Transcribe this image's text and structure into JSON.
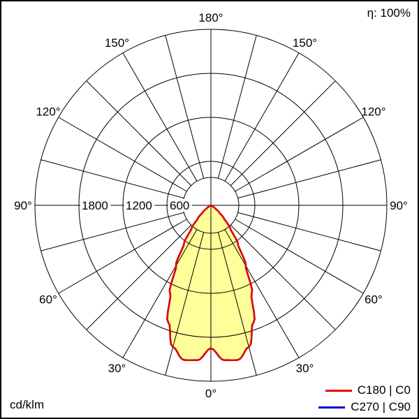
{
  "frame": {
    "background": "#ffffff",
    "border_color": "#000000"
  },
  "header": {
    "efficiency": "η: 100%"
  },
  "footer": {
    "unit": "cd/klm"
  },
  "legend": {
    "items": [
      {
        "label": "C180 | C0",
        "color": "#e60000"
      },
      {
        "label": "C270 | C90",
        "color": "#0000cc"
      }
    ]
  },
  "chart_data": {
    "type": "polar",
    "kind": "luminous-intensity-distribution",
    "unit": "cd/klm",
    "grid_color": "#000000",
    "grid_spoke_step_deg": 15,
    "angle_label_step_deg": 30,
    "angle_labels": [
      "0°",
      "30°",
      "60°",
      "90°",
      "120°",
      "150°",
      "180°"
    ],
    "radial_ticks": [
      600,
      1200,
      1800
    ],
    "radial_tick_labels": [
      "600",
      "1200",
      "1800"
    ],
    "radial_max": 2400,
    "series": [
      {
        "name": "C180 | C0",
        "color": "#e60000",
        "fill": "#ffff99",
        "gamma_deg": [
          0,
          5,
          10,
          15,
          20,
          25,
          30,
          35,
          40,
          45,
          50,
          55,
          60,
          65,
          70,
          75,
          80,
          85,
          90
        ],
        "values": [
          1950,
          2120,
          2140,
          2000,
          1700,
          1320,
          950,
          640,
          410,
          250,
          140,
          70,
          25,
          8,
          0,
          0,
          0,
          0,
          0
        ]
      },
      {
        "name": "C270 | C90",
        "color": "#0000cc",
        "fill": null,
        "gamma_deg": [
          0,
          5,
          10,
          15,
          20,
          25,
          30,
          35,
          40,
          45,
          50,
          55,
          60,
          65,
          70,
          75,
          80,
          85,
          90
        ],
        "values": [
          1950,
          2120,
          2140,
          2000,
          1700,
          1320,
          950,
          640,
          410,
          250,
          140,
          70,
          25,
          8,
          0,
          0,
          0,
          0,
          0
        ]
      }
    ]
  }
}
